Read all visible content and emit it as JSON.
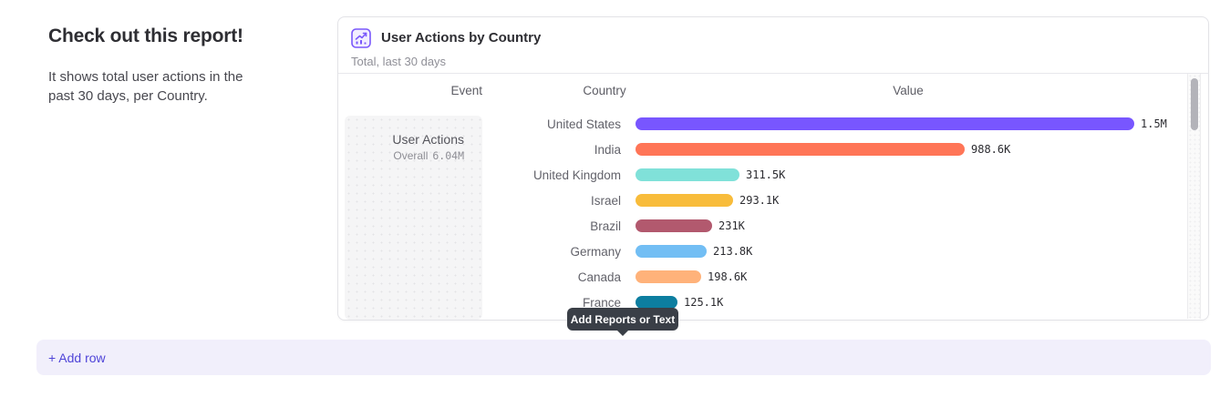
{
  "text_card": {
    "heading": "Check out this report!",
    "body": "It shows total user actions in the past 30 days, per Country."
  },
  "report_card": {
    "icon": "insights-report-icon",
    "title": "User Actions by Country",
    "subtitle": "Total, last 30 days",
    "table": {
      "columns": [
        "Event",
        "Country",
        "Value"
      ],
      "event_cell": {
        "name": "User Actions",
        "overall_label": "Overall",
        "overall_value": "6.04M"
      }
    }
  },
  "tooltip": {
    "label": "Add Reports or Text"
  },
  "add_row": {
    "label": "+ Add row"
  },
  "chart_data": {
    "type": "bar",
    "orientation": "horizontal",
    "title": "User Actions by Country",
    "subtitle": "Total, last 30 days",
    "categories": [
      "United States",
      "India",
      "United Kingdom",
      "Israel",
      "Brazil",
      "Germany",
      "Canada",
      "France"
    ],
    "values": [
      1500000,
      988600,
      311500,
      293100,
      231000,
      213800,
      198600,
      125100
    ],
    "value_labels": [
      "1.5M",
      "988.6K",
      "311.5K",
      "293.1K",
      "231K",
      "213.8K",
      "198.6K",
      "125.1K"
    ],
    "colors": [
      "#7856FF",
      "#FF7557",
      "#80E1D9",
      "#F8BC3B",
      "#B2596E",
      "#72BEF4",
      "#FFB27A",
      "#0D7EA0"
    ],
    "xlim": [
      0,
      1500000
    ],
    "grid": false,
    "legend": "none"
  },
  "colors": {
    "accent_purple": "#7856FF",
    "add_row_text": "#4f44d8",
    "add_row_bg": "#f1effb",
    "tooltip_bg": "#3a3f47"
  }
}
